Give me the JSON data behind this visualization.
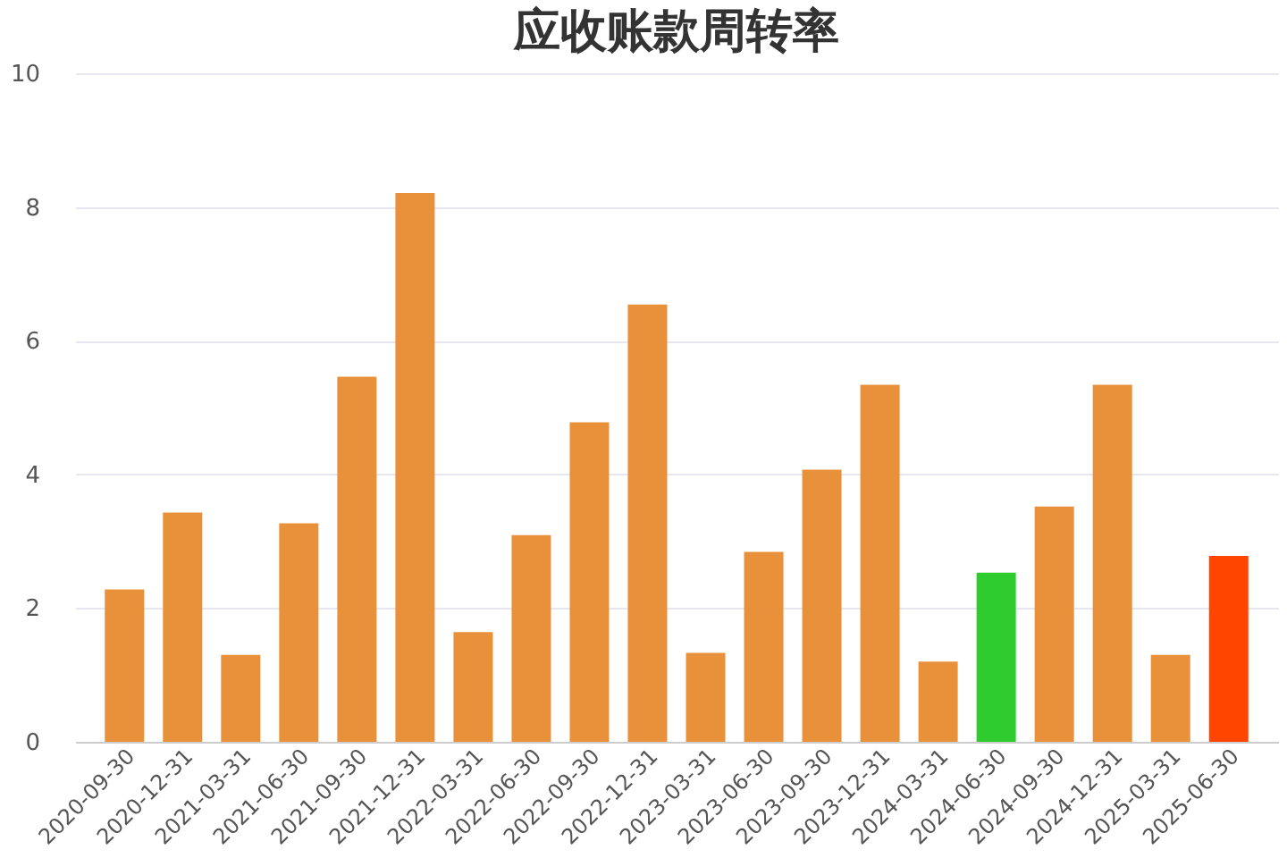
{
  "chart_data": {
    "type": "bar",
    "title": "应收账款周转率",
    "categories": [
      "2020-09-30",
      "2020-12-31",
      "2021-03-31",
      "2021-06-30",
      "2021-09-30",
      "2021-12-31",
      "2022-03-31",
      "2022-06-30",
      "2022-09-30",
      "2022-12-31",
      "2023-03-31",
      "2023-06-30",
      "2023-09-30",
      "2023-12-31",
      "2024-03-31",
      "2024-06-30",
      "2024-09-30",
      "2024-12-31",
      "2025-03-31",
      "2025-06-30"
    ],
    "values": [
      2.28,
      3.43,
      1.3,
      3.27,
      5.46,
      8.21,
      1.64,
      3.09,
      4.78,
      6.54,
      1.33,
      2.84,
      4.07,
      5.34,
      1.2,
      2.53,
      3.52,
      5.34,
      1.3,
      2.78
    ],
    "colors": [
      "#e8913a",
      "#e8913a",
      "#e8913a",
      "#e8913a",
      "#e8913a",
      "#e8913a",
      "#e8913a",
      "#e8913a",
      "#e8913a",
      "#e8913a",
      "#e8913a",
      "#e8913a",
      "#e8913a",
      "#e8913a",
      "#e8913a",
      "#2ecc2e",
      "#e8913a",
      "#e8913a",
      "#e8913a",
      "#ff4500"
    ],
    "ylim": [
      0,
      10
    ],
    "yticks": [
      0,
      2,
      4,
      6,
      8,
      10
    ],
    "grid": "y"
  }
}
